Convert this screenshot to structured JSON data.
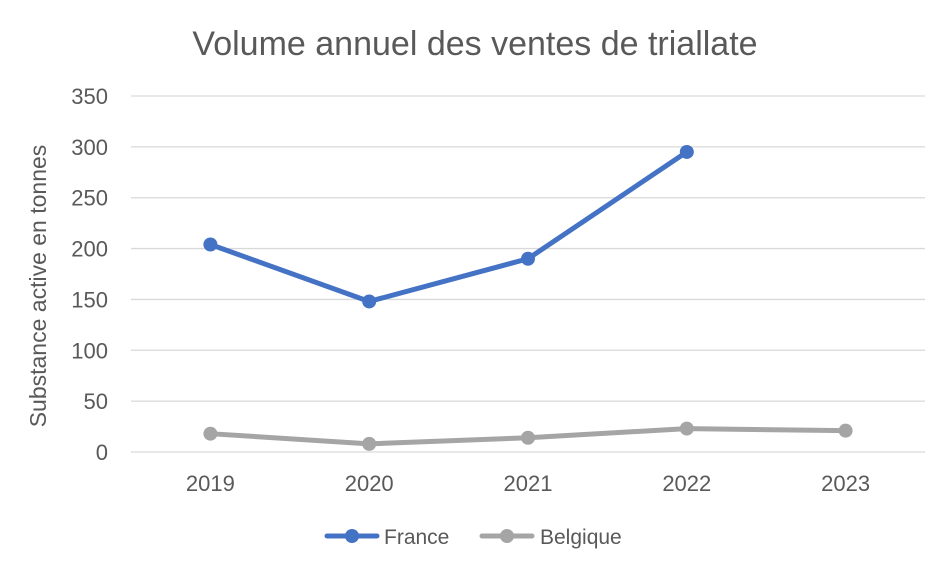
{
  "chart_data": {
    "type": "line",
    "title": "Volume annuel des ventes de triallate",
    "xlabel": "",
    "ylabel": "Substance active en tonnes",
    "categories": [
      "2019",
      "2020",
      "2021",
      "2022",
      "2023"
    ],
    "y_ticks": [
      "0",
      "50",
      "100",
      "150",
      "200",
      "250",
      "300",
      "350"
    ],
    "ylim": [
      0,
      350
    ],
    "grid": true,
    "legend_position": "bottom",
    "series": [
      {
        "name": "France",
        "color": "#4472c4",
        "values": [
          204,
          148,
          190,
          295,
          null
        ]
      },
      {
        "name": "Belgique",
        "color": "#a5a5a5",
        "values": [
          18,
          8,
          14,
          23,
          21
        ]
      }
    ]
  }
}
